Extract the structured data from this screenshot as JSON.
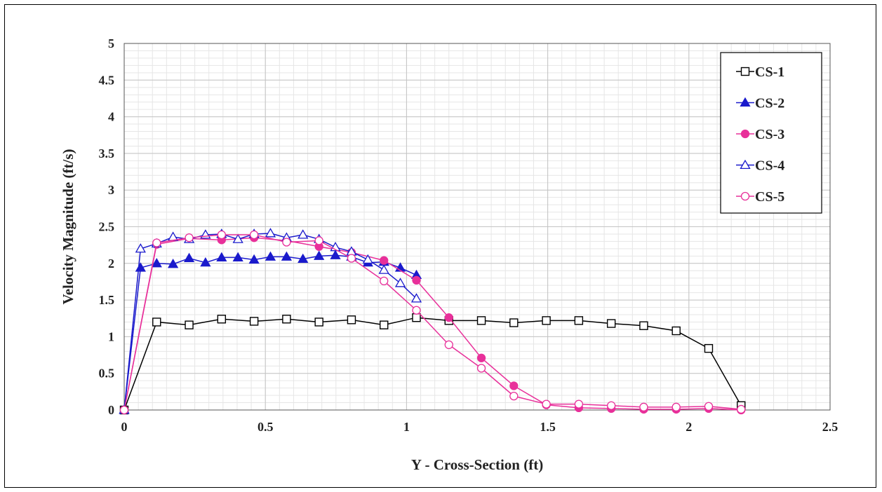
{
  "chart_data": {
    "type": "line",
    "title": "",
    "xlabel": "Y - Cross-Section (ft)",
    "ylabel": "Velocity Magnitude (ft/s)",
    "xlim": [
      0,
      2.5
    ],
    "ylim": [
      0,
      5
    ],
    "x_ticks": [
      "0",
      "0.5",
      "1",
      "1.5",
      "2",
      "2.5"
    ],
    "y_ticks": [
      "0",
      "0.5",
      "1",
      "1.5",
      "2",
      "2.5",
      "3",
      "3.5",
      "4",
      "4.5",
      "5"
    ],
    "grid": true,
    "legend_position": "top-right",
    "series": [
      {
        "name": "CS-1",
        "color": "#000000",
        "marker": "square-open",
        "x": [
          0,
          0.115,
          0.23,
          0.345,
          0.46,
          0.575,
          0.69,
          0.805,
          0.92,
          1.035,
          1.15,
          1.265,
          1.38,
          1.495,
          1.61,
          1.725,
          1.84,
          1.955,
          2.07,
          2.185
        ],
        "y": [
          0,
          1.2,
          1.16,
          1.24,
          1.21,
          1.24,
          1.2,
          1.23,
          1.16,
          1.26,
          1.22,
          1.22,
          1.19,
          1.22,
          1.22,
          1.18,
          1.15,
          1.08,
          0.84,
          0.06
        ]
      },
      {
        "name": "CS-2",
        "color": "#1a1acc",
        "marker": "triangle-filled",
        "x": [
          0,
          0.058,
          0.115,
          0.173,
          0.23,
          0.288,
          0.345,
          0.403,
          0.46,
          0.518,
          0.575,
          0.633,
          0.69,
          0.748,
          0.805,
          0.863,
          0.92,
          0.978,
          1.035
        ],
        "y": [
          0,
          1.94,
          2.0,
          1.99,
          2.07,
          2.01,
          2.08,
          2.08,
          2.05,
          2.09,
          2.09,
          2.06,
          2.1,
          2.11,
          2.09,
          2.01,
          2.02,
          1.94,
          1.84
        ]
      },
      {
        "name": "CS-3",
        "color": "#e8309a",
        "marker": "circle-filled",
        "x": [
          0,
          0.115,
          0.23,
          0.345,
          0.46,
          0.575,
          0.69,
          0.805,
          0.92,
          1.035,
          1.15,
          1.265,
          1.38,
          1.495,
          1.61,
          1.725,
          1.84,
          1.955,
          2.07,
          2.185
        ],
        "y": [
          0,
          2.26,
          2.34,
          2.32,
          2.35,
          2.31,
          2.23,
          2.15,
          2.04,
          1.77,
          1.26,
          0.71,
          0.33,
          0.07,
          0.03,
          0.02,
          0.01,
          0.01,
          0.02,
          0.0
        ]
      },
      {
        "name": "CS-4",
        "color": "#1a1acc",
        "marker": "triangle-open",
        "x": [
          0,
          0.058,
          0.115,
          0.173,
          0.23,
          0.288,
          0.345,
          0.403,
          0.46,
          0.518,
          0.575,
          0.633,
          0.69,
          0.748,
          0.805,
          0.863,
          0.92,
          0.978,
          1.035
        ],
        "y": [
          0,
          2.2,
          2.27,
          2.36,
          2.33,
          2.39,
          2.4,
          2.33,
          2.4,
          2.41,
          2.35,
          2.39,
          2.33,
          2.22,
          2.16,
          2.05,
          1.91,
          1.73,
          1.52
        ]
      },
      {
        "name": "CS-5",
        "color": "#e8309a",
        "marker": "circle-open",
        "x": [
          0,
          0.115,
          0.23,
          0.345,
          0.46,
          0.575,
          0.69,
          0.805,
          0.92,
          1.035,
          1.15,
          1.265,
          1.38,
          1.495,
          1.61,
          1.725,
          1.84,
          1.955,
          2.07,
          2.185
        ],
        "y": [
          0,
          2.28,
          2.35,
          2.39,
          2.39,
          2.29,
          2.31,
          2.07,
          1.76,
          1.36,
          0.89,
          0.57,
          0.19,
          0.08,
          0.08,
          0.06,
          0.04,
          0.04,
          0.05,
          0.01
        ]
      }
    ]
  }
}
